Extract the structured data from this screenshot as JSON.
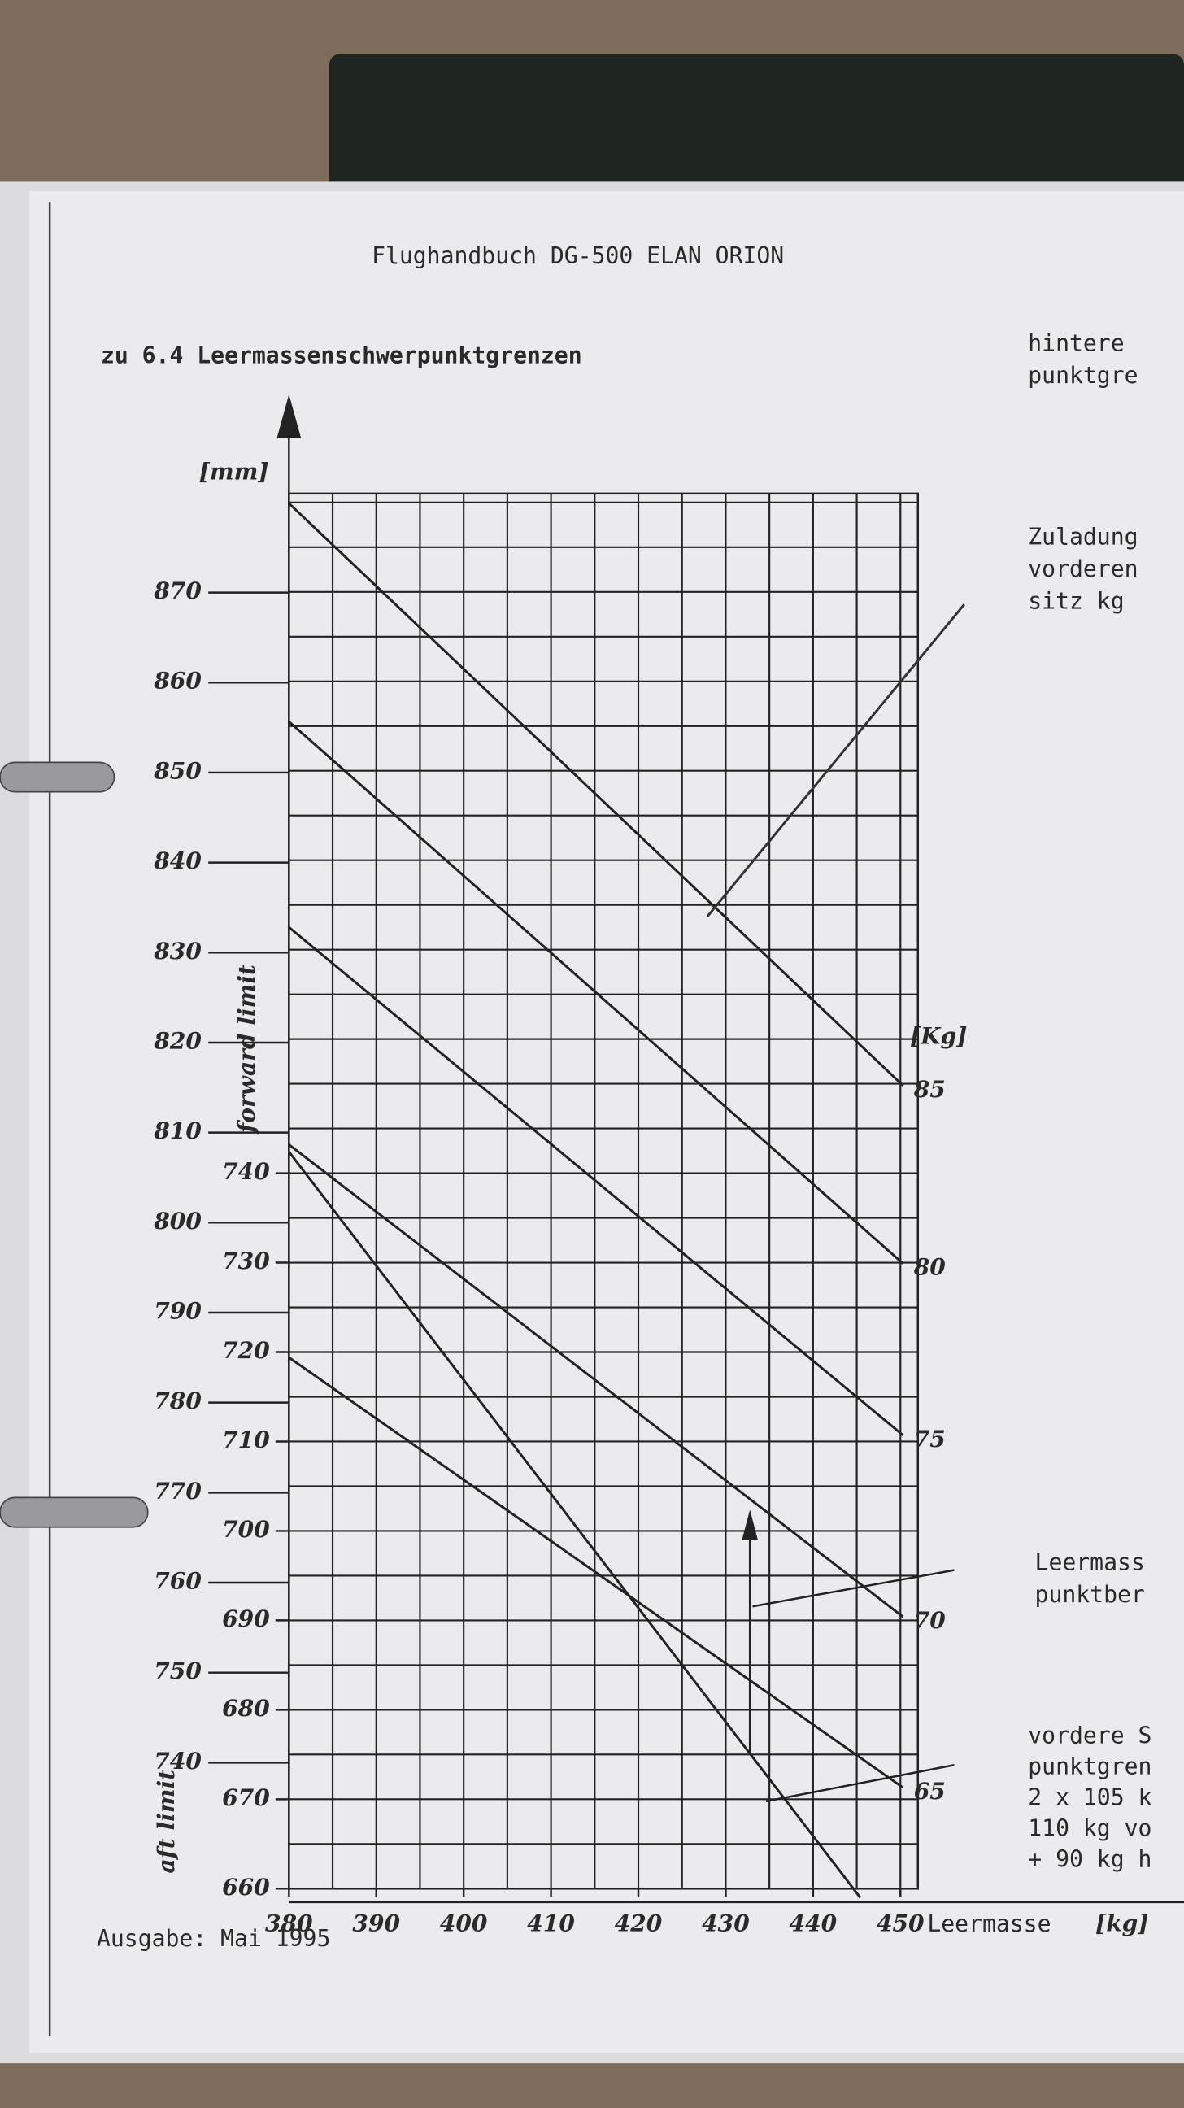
{
  "header": "Flughandbuch  DG-500 ELAN ORION",
  "section": "zu 6.4 Leermassenschwerpunktgrenzen",
  "side_notes": [
    "hintere",
    "punktgre",
    "Zuladung",
    "vorderen",
    "sitz  kg",
    "Leermass",
    "punktber",
    "vordere S",
    "punktgren",
    "2 x 105 k",
    "110 kg vo",
    "+ 90 kg h"
  ],
  "footer": "Ausgabe: Mai 1995",
  "chart_data": {
    "type": "line",
    "y_label": "[mm]",
    "x_label": "Leermasse",
    "x_unit": "[kg]",
    "series_unit": "[Kg]",
    "y_annotations": [
      "forward limit",
      "aft limit"
    ],
    "xlim": [
      380,
      452
    ],
    "xticks": [
      380,
      390,
      400,
      410,
      420,
      430,
      440,
      450
    ],
    "ylim": [
      660,
      816
    ],
    "yticks": [
      660,
      670,
      680,
      690,
      700,
      710,
      720,
      730,
      740
    ],
    "y2lim": [
      726,
      881
    ],
    "y2ticks": [
      740,
      750,
      760,
      770,
      780,
      790,
      800,
      810,
      820,
      830,
      840,
      850,
      860,
      870
    ],
    "grid": true,
    "xgrid": [
      380,
      385,
      390,
      395,
      400,
      405,
      410,
      415,
      420,
      425,
      430,
      435,
      440,
      445,
      450
    ],
    "ygrid": [
      660,
      665,
      670,
      675,
      680,
      685,
      690,
      695,
      700,
      705,
      710,
      715,
      720,
      725,
      730,
      735,
      740,
      745,
      750,
      755,
      760,
      765,
      770,
      775,
      780,
      785,
      790,
      795,
      800,
      805,
      810,
      815
    ],
    "series": [
      {
        "name": "85",
        "color": "#222",
        "x": [
          380,
          450.3
        ],
        "values": [
          814.9,
          749.8
        ]
      },
      {
        "name": "80",
        "color": "#222",
        "x": [
          380,
          450.3
        ],
        "values": [
          790.5,
          729.9
        ]
      },
      {
        "name": "75",
        "color": "#222",
        "x": [
          380,
          450.3
        ],
        "values": [
          767.5,
          710.7
        ]
      },
      {
        "name": "70",
        "color": "#222",
        "x": [
          380,
          450.3
        ],
        "values": [
          743.2,
          690.4
        ]
      },
      {
        "name": "65",
        "color": "#222",
        "x": [
          380,
          450.3
        ],
        "values": [
          719.4,
          671.3
        ]
      },
      {
        "color": "#222",
        "x": [
          380,
          445.4
        ],
        "values": [
          742.4,
          659
        ]
      },
      {
        "color": "#333",
        "x": [
          427.9,
          457.3
        ],
        "values": [
          768.7,
          803.6
        ]
      }
    ]
  }
}
